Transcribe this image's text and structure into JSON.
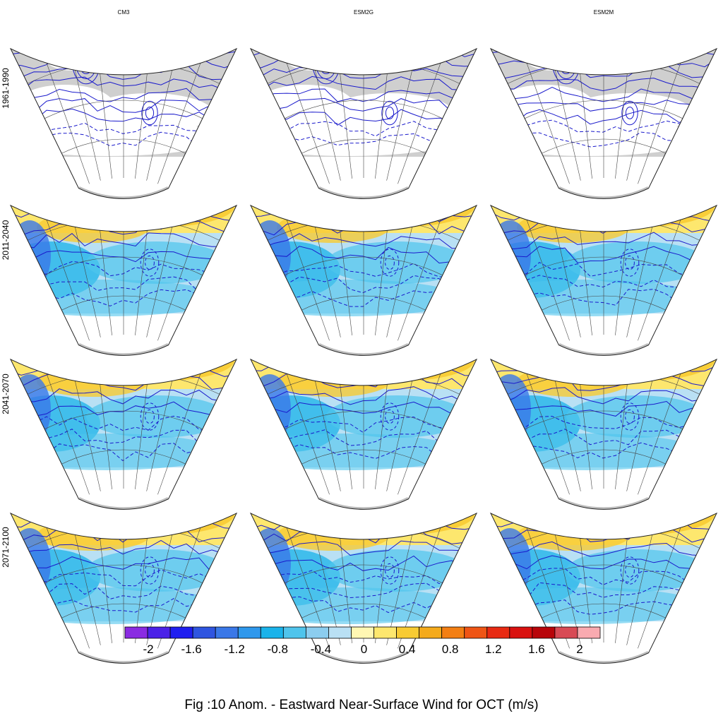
{
  "models": [
    "CM3",
    "ESM2G",
    "ESM2M"
  ],
  "periods": [
    "1961-1990",
    "2011-2040",
    "2041-2070",
    "2071-2100"
  ],
  "caption": "Fig :10  Anom.  - Eastward Near-Surface Wind for OCT (m/s)",
  "colorbar": {
    "colors": [
      "#8a2be2",
      "#4b21e8",
      "#1f1ef0",
      "#2f55e0",
      "#3a78e8",
      "#2f98ec",
      "#1ab3ea",
      "#4fc4ec",
      "#8ccdef",
      "#b9e0f4",
      "#fff7b3",
      "#fde76e",
      "#f8cb33",
      "#f4aa1b",
      "#f37f13",
      "#ef5515",
      "#e82a12",
      "#d9110f",
      "#b8050a",
      "#d84a55",
      "#f9aab0"
    ],
    "tick_labels": [
      "-2",
      "-1.6",
      "-1.2",
      "-0.8",
      "-0.4",
      "0",
      "0.4",
      "0.8",
      "1.2",
      "1.6",
      "2"
    ]
  },
  "colors": {
    "contour": "#1a1acc",
    "land_gray": "#cfcfcf",
    "grid": "#444444"
  }
}
